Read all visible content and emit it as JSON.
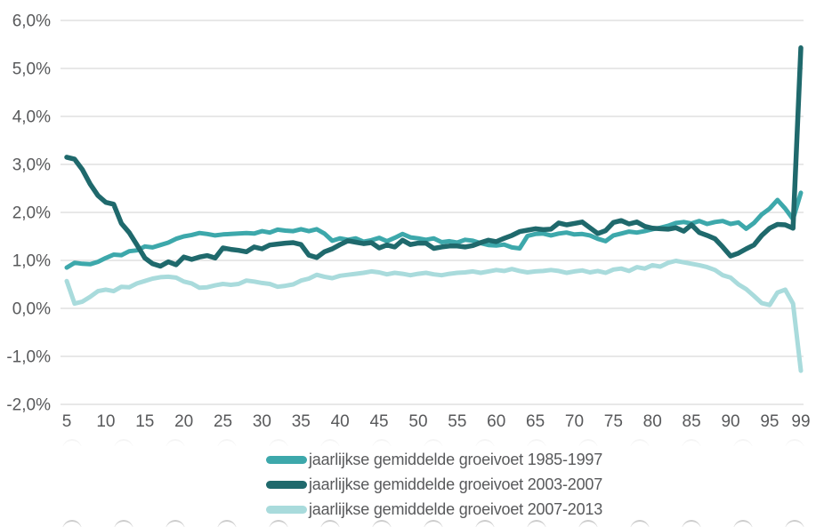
{
  "chart_data": {
    "type": "line",
    "title": "",
    "xlabel": "",
    "ylabel": "",
    "ylim": [
      -2.0,
      6.0
    ],
    "grid": "horizontal",
    "legend_position": "bottom",
    "y_ticks": [
      {
        "value": 6.0,
        "label": "6,0%"
      },
      {
        "value": 5.0,
        "label": "5,0%"
      },
      {
        "value": 4.0,
        "label": "4,0%"
      },
      {
        "value": 3.0,
        "label": "3,0%"
      },
      {
        "value": 2.0,
        "label": "2,0%"
      },
      {
        "value": 1.0,
        "label": "1,0%"
      },
      {
        "value": 0.0,
        "label": "0,0%"
      },
      {
        "value": -1.0,
        "label": "-1,0%"
      },
      {
        "value": -2.0,
        "label": "-2,0%"
      }
    ],
    "x_ticks": [
      5,
      10,
      15,
      20,
      25,
      30,
      35,
      40,
      45,
      50,
      55,
      60,
      65,
      70,
      75,
      80,
      85,
      90,
      95,
      99
    ],
    "x": [
      5,
      6,
      7,
      8,
      9,
      10,
      11,
      12,
      13,
      14,
      15,
      16,
      17,
      18,
      19,
      20,
      21,
      22,
      23,
      24,
      25,
      26,
      27,
      28,
      29,
      30,
      31,
      32,
      33,
      34,
      35,
      36,
      37,
      38,
      39,
      40,
      41,
      42,
      43,
      44,
      45,
      46,
      47,
      48,
      49,
      50,
      51,
      52,
      53,
      54,
      55,
      56,
      57,
      58,
      59,
      60,
      61,
      62,
      63,
      64,
      65,
      66,
      67,
      68,
      69,
      70,
      71,
      72,
      73,
      74,
      75,
      76,
      77,
      78,
      79,
      80,
      81,
      82,
      83,
      84,
      85,
      86,
      87,
      88,
      89,
      90,
      91,
      92,
      93,
      94,
      95,
      96,
      97,
      98,
      99
    ],
    "series": [
      {
        "name": "jaarlijkse gemiddelde groeivoet 1985-1997",
        "color": "#3da8ab",
        "values": [
          0.85,
          0.95,
          0.93,
          0.92,
          0.97,
          1.05,
          1.12,
          1.11,
          1.19,
          1.21,
          1.29,
          1.27,
          1.32,
          1.37,
          1.45,
          1.5,
          1.53,
          1.57,
          1.55,
          1.52,
          1.54,
          1.55,
          1.56,
          1.57,
          1.56,
          1.61,
          1.58,
          1.64,
          1.62,
          1.61,
          1.65,
          1.61,
          1.65,
          1.56,
          1.41,
          1.46,
          1.43,
          1.46,
          1.39,
          1.42,
          1.47,
          1.4,
          1.47,
          1.55,
          1.48,
          1.46,
          1.43,
          1.46,
          1.38,
          1.4,
          1.37,
          1.43,
          1.41,
          1.36,
          1.32,
          1.31,
          1.33,
          1.27,
          1.25,
          1.51,
          1.55,
          1.56,
          1.52,
          1.56,
          1.58,
          1.54,
          1.55,
          1.52,
          1.45,
          1.4,
          1.52,
          1.56,
          1.6,
          1.58,
          1.61,
          1.65,
          1.68,
          1.72,
          1.78,
          1.8,
          1.77,
          1.82,
          1.76,
          1.8,
          1.82,
          1.76,
          1.79,
          1.66,
          1.78,
          1.96,
          2.08,
          2.26,
          2.08,
          1.86,
          2.41
        ]
      },
      {
        "name": "jaarlijkse gemiddelde groeivoet 2003-2007",
        "color": "#1f696c",
        "values": [
          3.15,
          3.11,
          2.89,
          2.59,
          2.35,
          2.21,
          2.17,
          1.77,
          1.58,
          1.32,
          1.05,
          0.93,
          0.88,
          0.97,
          0.91,
          1.07,
          1.02,
          1.07,
          1.1,
          1.05,
          1.26,
          1.23,
          1.21,
          1.18,
          1.28,
          1.24,
          1.32,
          1.34,
          1.36,
          1.37,
          1.33,
          1.11,
          1.06,
          1.18,
          1.24,
          1.33,
          1.41,
          1.38,
          1.35,
          1.37,
          1.26,
          1.32,
          1.28,
          1.42,
          1.33,
          1.36,
          1.36,
          1.25,
          1.28,
          1.3,
          1.3,
          1.28,
          1.31,
          1.37,
          1.42,
          1.39,
          1.46,
          1.52,
          1.6,
          1.63,
          1.66,
          1.64,
          1.65,
          1.78,
          1.74,
          1.77,
          1.8,
          1.68,
          1.56,
          1.62,
          1.79,
          1.83,
          1.76,
          1.8,
          1.71,
          1.67,
          1.66,
          1.65,
          1.68,
          1.61,
          1.74,
          1.58,
          1.52,
          1.45,
          1.28,
          1.09,
          1.15,
          1.24,
          1.32,
          1.52,
          1.67,
          1.75,
          1.74,
          1.67,
          5.43
        ]
      },
      {
        "name": "jaarlijkse gemiddelde groeivoet 2007-2013",
        "color": "#a9dbdc",
        "values": [
          0.57,
          0.1,
          0.14,
          0.24,
          0.36,
          0.39,
          0.36,
          0.45,
          0.44,
          0.52,
          0.57,
          0.62,
          0.65,
          0.66,
          0.64,
          0.56,
          0.52,
          0.43,
          0.44,
          0.48,
          0.51,
          0.49,
          0.51,
          0.58,
          0.56,
          0.53,
          0.51,
          0.45,
          0.47,
          0.5,
          0.58,
          0.62,
          0.7,
          0.66,
          0.63,
          0.68,
          0.7,
          0.72,
          0.74,
          0.77,
          0.75,
          0.71,
          0.74,
          0.72,
          0.69,
          0.72,
          0.74,
          0.71,
          0.69,
          0.72,
          0.74,
          0.75,
          0.77,
          0.74,
          0.77,
          0.8,
          0.78,
          0.82,
          0.78,
          0.75,
          0.77,
          0.78,
          0.8,
          0.78,
          0.74,
          0.77,
          0.79,
          0.75,
          0.78,
          0.74,
          0.81,
          0.83,
          0.78,
          0.86,
          0.83,
          0.9,
          0.87,
          0.95,
          0.99,
          0.96,
          0.93,
          0.9,
          0.86,
          0.8,
          0.69,
          0.64,
          0.5,
          0.4,
          0.26,
          0.11,
          0.07,
          0.33,
          0.39,
          0.1,
          -1.3
        ]
      }
    ]
  },
  "colors": {
    "grid": "#d9d9d9",
    "axis_text": "#58595b",
    "legend_text": "#58595b",
    "background": "#ffffff"
  },
  "decor": {
    "top_marks": 15,
    "bottom_marks": 15
  }
}
